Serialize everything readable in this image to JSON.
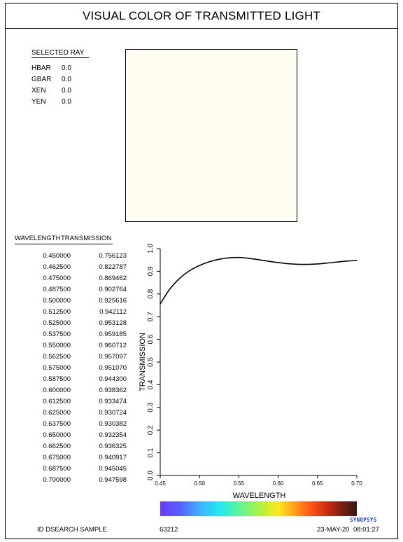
{
  "title": "VISUAL COLOR OF TRANSMITTED LIGHT",
  "selected_ray": {
    "header": "SELECTED RAY",
    "rows": [
      {
        "key": "HBAR",
        "value": "0.0"
      },
      {
        "key": "GBAR",
        "value": "0.0"
      },
      {
        "key": "XEN",
        "value": "0.0"
      },
      {
        "key": "YEN",
        "value": "0.0"
      }
    ]
  },
  "swatch_color": "#fffcf2",
  "table": {
    "col1": "WAVELENGTH",
    "col2": "TRANSMISSION",
    "rows": [
      {
        "w": "0.450000",
        "t": "0.756123"
      },
      {
        "w": "0.462500",
        "t": "0.822787"
      },
      {
        "w": "0.475000",
        "t": "0.869462"
      },
      {
        "w": "0.487500",
        "t": "0.902764"
      },
      {
        "w": "0.500000",
        "t": "0.925616"
      },
      {
        "w": "0.512500",
        "t": "0.942112"
      },
      {
        "w": "0.525000",
        "t": "0.953128"
      },
      {
        "w": "0.537500",
        "t": "0.959185"
      },
      {
        "w": "0.550000",
        "t": "0.960712"
      },
      {
        "w": "0.562500",
        "t": "0.957097"
      },
      {
        "w": "0.575000",
        "t": "0.951070"
      },
      {
        "w": "0.587500",
        "t": "0.944300"
      },
      {
        "w": "0.600000",
        "t": "0.938362"
      },
      {
        "w": "0.612500",
        "t": "0.933474"
      },
      {
        "w": "0.625000",
        "t": "0.930724"
      },
      {
        "w": "0.637500",
        "t": "0.930382"
      },
      {
        "w": "0.650000",
        "t": "0.932354"
      },
      {
        "w": "0.662500",
        "t": "0.936325"
      },
      {
        "w": "0.675000",
        "t": "0.940917"
      },
      {
        "w": "0.687500",
        "t": "0.945045"
      },
      {
        "w": "0.700000",
        "t": "0.947598"
      }
    ]
  },
  "chart_data": {
    "type": "line",
    "xlabel": "WAVELENGTH",
    "ylabel": "TRANSMISSION",
    "xlim": [
      0.45,
      0.7
    ],
    "ylim": [
      0.0,
      1.0
    ],
    "x_ticks": [
      "0.45",
      "0.50",
      "0.55",
      "0.60",
      "0.65",
      "0.70"
    ],
    "y_ticks": [
      "0.0",
      "0.1",
      "0.2",
      "0.3",
      "0.4",
      "0.5",
      "0.6",
      "0.7",
      "0.8",
      "0.9",
      "1.0"
    ],
    "grid": false,
    "x": [
      0.45,
      0.4625,
      0.475,
      0.4875,
      0.5,
      0.5125,
      0.525,
      0.5375,
      0.55,
      0.5625,
      0.575,
      0.5875,
      0.6,
      0.6125,
      0.625,
      0.6375,
      0.65,
      0.6625,
      0.675,
      0.6875,
      0.7
    ],
    "y": [
      0.756123,
      0.822787,
      0.869462,
      0.902764,
      0.925616,
      0.942112,
      0.953128,
      0.959185,
      0.960712,
      0.957097,
      0.95107,
      0.9443,
      0.938362,
      0.933474,
      0.930724,
      0.930382,
      0.932354,
      0.936325,
      0.940917,
      0.945045,
      0.947598
    ]
  },
  "footer": {
    "left": "ID DSEARCH SAMPLE",
    "mid": "63212",
    "date": "23-MAY-20",
    "time": "08:01:27"
  },
  "brand": "SYNOPSYS"
}
